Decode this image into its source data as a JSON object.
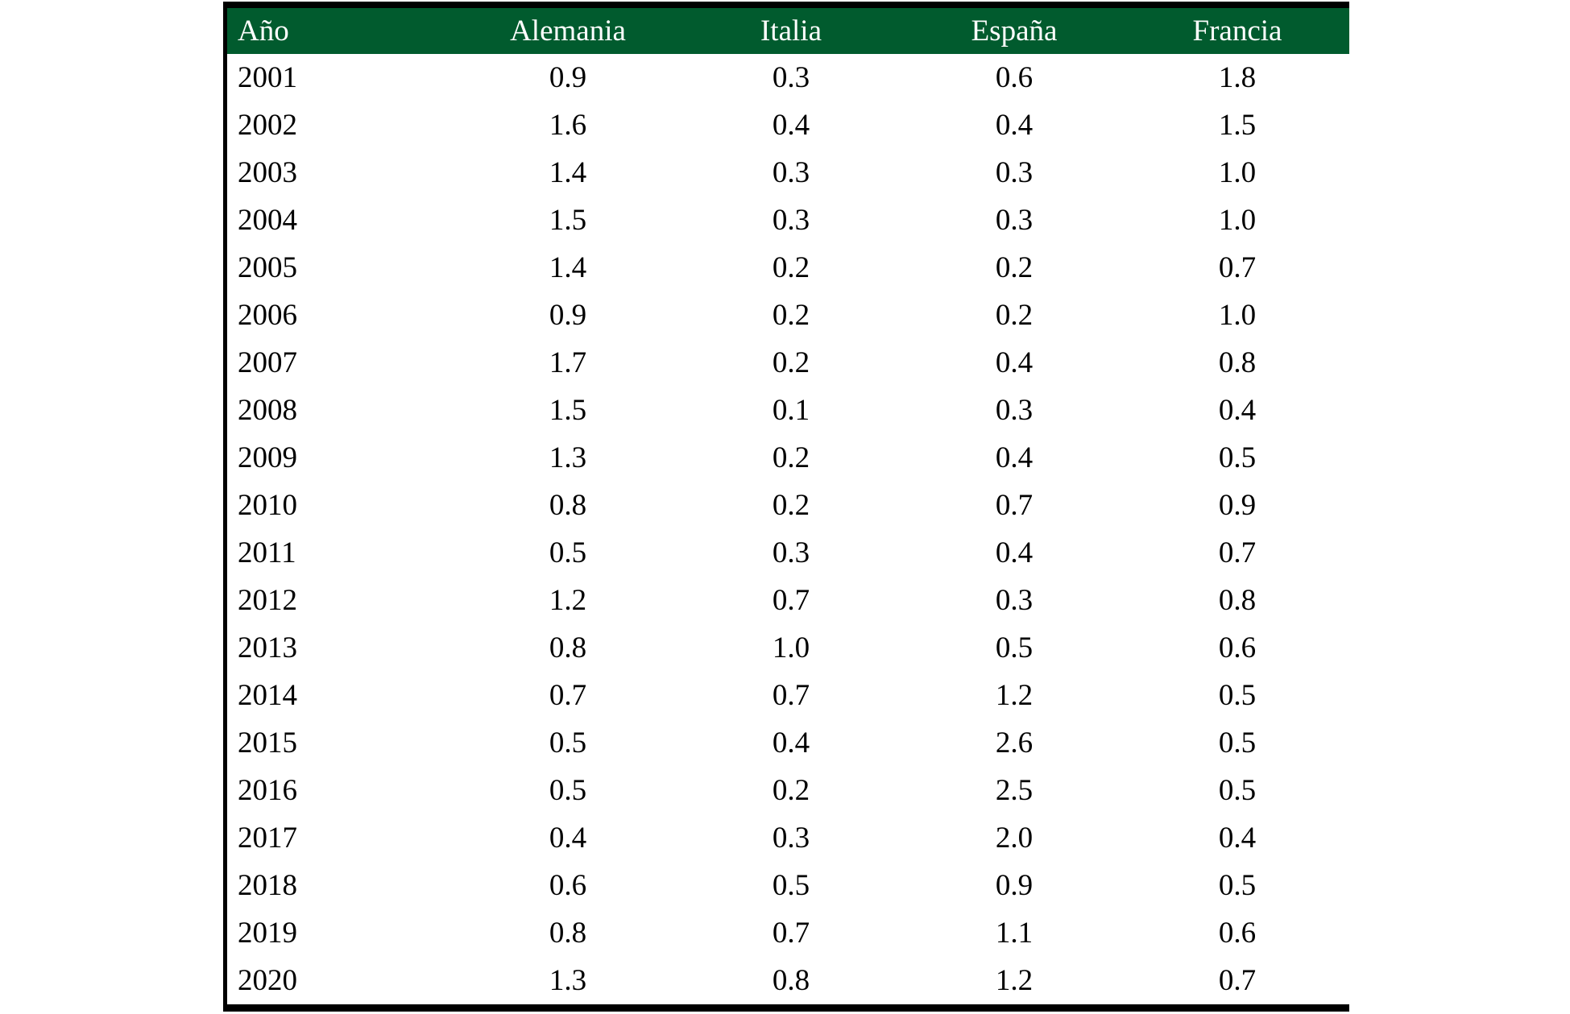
{
  "table": {
    "columns": [
      "Año",
      "Alemania",
      "Italia",
      "España",
      "Francia"
    ],
    "rows": [
      [
        "2001",
        "0.9",
        "0.3",
        "0.6",
        "1.8"
      ],
      [
        "2002",
        "1.6",
        "0.4",
        "0.4",
        "1.5"
      ],
      [
        "2003",
        "1.4",
        "0.3",
        "0.3",
        "1.0"
      ],
      [
        "2004",
        "1.5",
        "0.3",
        "0.3",
        "1.0"
      ],
      [
        "2005",
        "1.4",
        "0.2",
        "0.2",
        "0.7"
      ],
      [
        "2006",
        "0.9",
        "0.2",
        "0.2",
        "1.0"
      ],
      [
        "2007",
        "1.7",
        "0.2",
        "0.4",
        "0.8"
      ],
      [
        "2008",
        "1.5",
        "0.1",
        "0.3",
        "0.4"
      ],
      [
        "2009",
        "1.3",
        "0.2",
        "0.4",
        "0.5"
      ],
      [
        "2010",
        "0.8",
        "0.2",
        "0.7",
        "0.9"
      ],
      [
        "2011",
        "0.5",
        "0.3",
        "0.4",
        "0.7"
      ],
      [
        "2012",
        "1.2",
        "0.7",
        "0.3",
        "0.8"
      ],
      [
        "2013",
        "0.8",
        "1.0",
        "0.5",
        "0.6"
      ],
      [
        "2014",
        "0.7",
        "0.7",
        "1.2",
        "0.5"
      ],
      [
        "2015",
        "0.5",
        "0.4",
        "2.6",
        "0.5"
      ],
      [
        "2016",
        "0.5",
        "0.2",
        "2.5",
        "0.5"
      ],
      [
        "2017",
        "0.4",
        "0.3",
        "2.0",
        "0.4"
      ],
      [
        "2018",
        "0.6",
        "0.5",
        "0.9",
        "0.5"
      ],
      [
        "2019",
        "0.8",
        "0.7",
        "1.1",
        "0.6"
      ],
      [
        "2020",
        "1.3",
        "0.8",
        "1.2",
        "0.7"
      ]
    ]
  },
  "colors": {
    "header_bg": "#015B2E",
    "header_text": "#FFFFFF",
    "body_text": "#000000",
    "border": "#000000",
    "background": "#FFFFFF"
  },
  "chart_data": {
    "type": "table",
    "title": "",
    "xlabel": "Año",
    "categories": [
      "2001",
      "2002",
      "2003",
      "2004",
      "2005",
      "2006",
      "2007",
      "2008",
      "2009",
      "2010",
      "2011",
      "2012",
      "2013",
      "2014",
      "2015",
      "2016",
      "2017",
      "2018",
      "2019",
      "2020"
    ],
    "series": [
      {
        "name": "Alemania",
        "values": [
          0.9,
          1.6,
          1.4,
          1.5,
          1.4,
          0.9,
          1.7,
          1.5,
          1.3,
          0.8,
          0.5,
          1.2,
          0.8,
          0.7,
          0.5,
          0.5,
          0.4,
          0.6,
          0.8,
          1.3
        ]
      },
      {
        "name": "Italia",
        "values": [
          0.3,
          0.4,
          0.3,
          0.3,
          0.2,
          0.2,
          0.2,
          0.1,
          0.2,
          0.2,
          0.3,
          0.7,
          1.0,
          0.7,
          0.4,
          0.2,
          0.3,
          0.5,
          0.7,
          0.8
        ]
      },
      {
        "name": "España",
        "values": [
          0.6,
          0.4,
          0.3,
          0.3,
          0.2,
          0.2,
          0.4,
          0.3,
          0.4,
          0.7,
          0.4,
          0.3,
          0.5,
          1.2,
          2.6,
          2.5,
          2.0,
          0.9,
          1.1,
          1.2
        ]
      },
      {
        "name": "Francia",
        "values": [
          1.8,
          1.5,
          1.0,
          1.0,
          0.7,
          1.0,
          0.8,
          0.4,
          0.5,
          0.9,
          0.7,
          0.8,
          0.6,
          0.5,
          0.5,
          0.5,
          0.4,
          0.5,
          0.6,
          0.7
        ]
      }
    ]
  }
}
